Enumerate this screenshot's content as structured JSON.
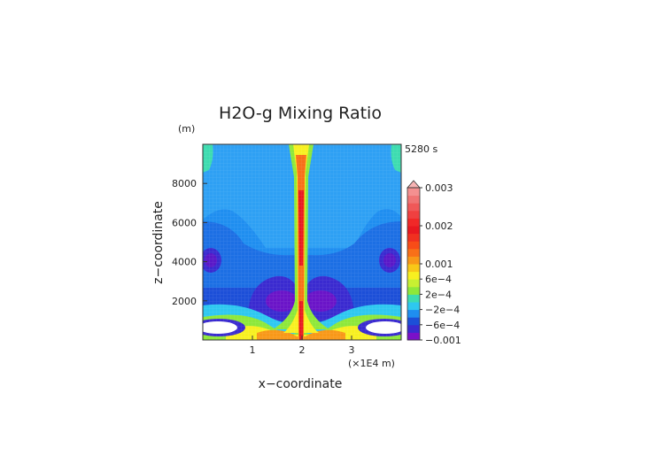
{
  "chart_data": {
    "type": "heatmap",
    "title": "H2O-g Mixing Ratio",
    "time_label": "5280 s",
    "xlabel": "x−coordinate",
    "ylabel": "z−coordinate",
    "y_unit": "(m)",
    "x_unit": "(×1E4 m)",
    "x_ticks": [
      "1",
      "2",
      "3"
    ],
    "x_tick_values": [
      1,
      2,
      3
    ],
    "y_ticks": [
      "2000",
      "4000",
      "6000",
      "8000"
    ],
    "y_tick_values": [
      2000,
      4000,
      6000,
      8000
    ],
    "xlim": [
      0,
      4
    ],
    "ylim": [
      0,
      10000
    ],
    "colorbar": {
      "tick_labels": [
        "0.003",
        "0.002",
        "0.001",
        "6e−4",
        "2e−4",
        "−2e−4",
        "−6e−4",
        "−0.001"
      ],
      "tick_values": [
        0.003,
        0.002,
        0.001,
        0.0006,
        0.0002,
        -0.0002,
        -0.0006,
        -0.001
      ],
      "levels": [
        -0.001,
        -0.0008,
        -0.0006,
        -0.0004,
        -0.0002,
        0,
        0.0002,
        0.0004,
        0.0006,
        0.0008,
        0.001,
        0.0012,
        0.0014,
        0.0016,
        0.0018,
        0.002,
        0.0022,
        0.0024,
        0.0026,
        0.0028,
        0.003
      ],
      "colors": [
        "#7a10c8",
        "#3a2ad0",
        "#1c4fd8",
        "#1f8ef0",
        "#2ec8f0",
        "#3ddcb0",
        "#8ee83a",
        "#c8f032",
        "#f8f020",
        "#f8c818",
        "#f89818",
        "#f87018",
        "#f84c18",
        "#f03020",
        "#e81820",
        "#f02828",
        "#f04040",
        "#f05858",
        "#f07474",
        "#f49090",
        "#f8b4b4"
      ],
      "extend_top": true
    },
    "features": [
      {
        "name": "central plume",
        "x_center": 2.0,
        "z_top": 10000,
        "max_value": 0.0025
      },
      {
        "name": "dry lobes",
        "x_centers": [
          1.5,
          2.5
        ],
        "z_center": 1900,
        "value": -0.0009
      },
      {
        "name": "side dry lobes",
        "x_centers": [
          0.15,
          3.85
        ],
        "z_center": 3900,
        "value": -0.0008
      },
      {
        "name": "near-surface minimum",
        "x_centers": [
          0.3,
          3.7
        ],
        "z_center": 400,
        "value": -0.001
      }
    ]
  }
}
